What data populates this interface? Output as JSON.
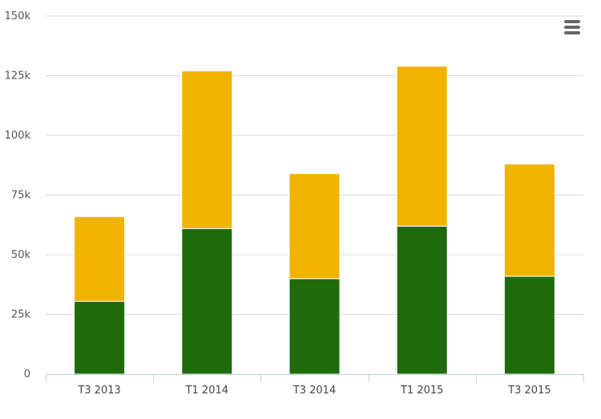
{
  "chart_data": {
    "type": "bar",
    "stacked": true,
    "categories": [
      "T3 2013",
      "T1 2014",
      "T3 2014",
      "T1 2015",
      "T3 2015"
    ],
    "series": [
      {
        "values": [
          30500,
          61000,
          40000,
          62000,
          41000
        ],
        "color": "#1f6b0b"
      },
      {
        "values": [
          35500,
          66000,
          44000,
          67000,
          47000
        ],
        "color": "#f0b400"
      }
    ],
    "yticks": [
      "0",
      "25k",
      "50k",
      "75k",
      "100k",
      "125k",
      "150k"
    ],
    "ylim": [
      0,
      150000
    ],
    "title": "",
    "xlabel": "",
    "ylabel": "",
    "grid": true,
    "legend": "none"
  },
  "ui": {
    "menu_icon": "hamburger-menu-icon"
  }
}
